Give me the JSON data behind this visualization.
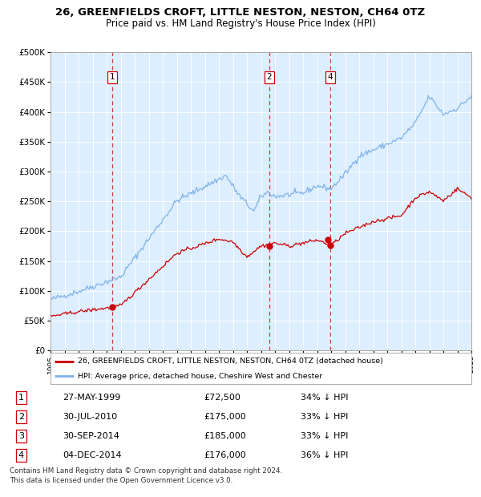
{
  "title": "26, GREENFIELDS CROFT, LITTLE NESTON, NESTON, CH64 0TZ",
  "subtitle": "Price paid vs. HM Land Registry's House Price Index (HPI)",
  "bg_color": "#ddeeff",
  "sale_color": "#cc0000",
  "hpi_color": "#7fb3e8",
  "ylim": [
    0,
    500000
  ],
  "yticks": [
    0,
    50000,
    100000,
    150000,
    200000,
    250000,
    300000,
    350000,
    400000,
    450000,
    500000
  ],
  "transactions": [
    {
      "num": 1,
      "x_year": 1999.41,
      "price": 72500
    },
    {
      "num": 2,
      "x_year": 2010.58,
      "price": 175000
    },
    {
      "num": 3,
      "x_year": 2014.75,
      "price": 185000
    },
    {
      "num": 4,
      "x_year": 2014.92,
      "price": 176000
    }
  ],
  "vlines": [
    {
      "num": 1,
      "x_year": 1999.41
    },
    {
      "num": 2,
      "x_year": 2010.58
    },
    {
      "num": 4,
      "x_year": 2014.92
    }
  ],
  "table_rows": [
    {
      "num": 1,
      "date": "27-MAY-1999",
      "price": "£72,500",
      "hpi": "34% ↓ HPI"
    },
    {
      "num": 2,
      "date": "30-JUL-2010",
      "price": "£175,000",
      "hpi": "33% ↓ HPI"
    },
    {
      "num": 3,
      "date": "30-SEP-2014",
      "price": "£185,000",
      "hpi": "33% ↓ HPI"
    },
    {
      "num": 4,
      "date": "04-DEC-2014",
      "price": "£176,000",
      "hpi": "36% ↓ HPI"
    }
  ],
  "legend_property_label": "26, GREENFIELDS CROFT, LITTLE NESTON, NESTON, CH64 0TZ (detached house)",
  "legend_hpi_label": "HPI: Average price, detached house, Cheshire West and Chester",
  "footer": "Contains HM Land Registry data © Crown copyright and database right 2024.\nThis data is licensed under the Open Government Licence v3.0.",
  "xmin": 1995,
  "xmax": 2025
}
